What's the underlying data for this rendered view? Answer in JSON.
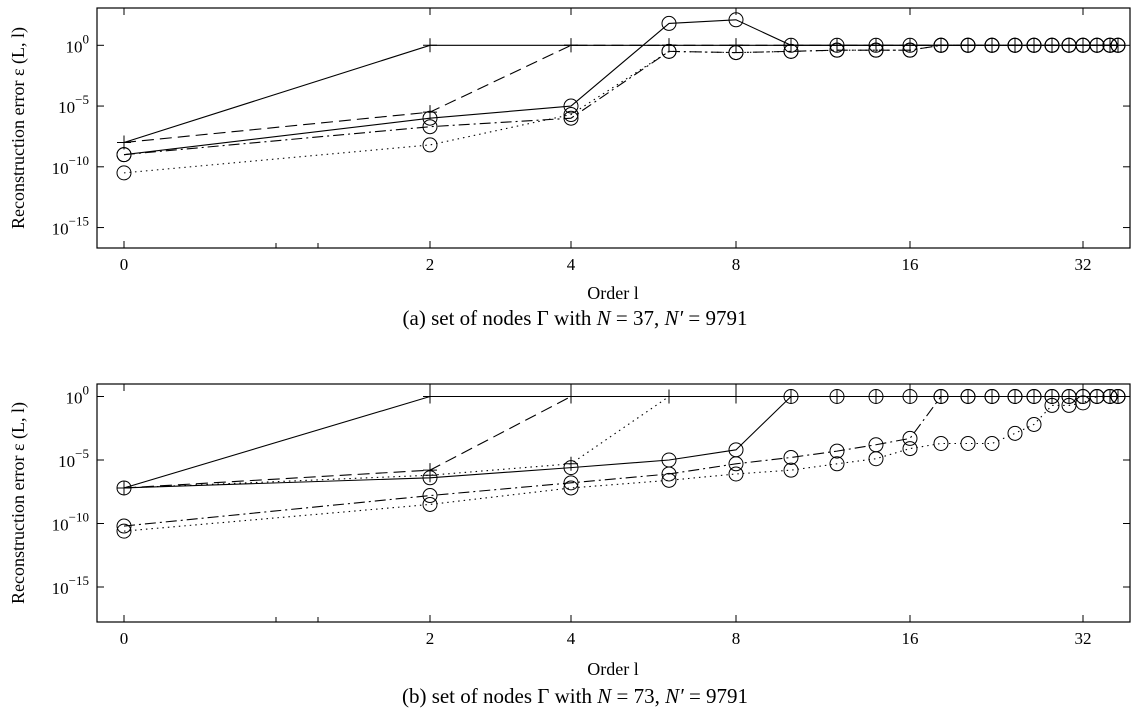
{
  "chart_data": [
    {
      "type": "line",
      "caption": "(a) set of nodes Γ with N = 37, N′ = 9791",
      "caption_parts": {
        "prefix": "(a) set of nodes Γ with ",
        "n_var": "N",
        "n_val": " = 37, ",
        "np_var": "N′",
        "np_val": " = 9791"
      },
      "xlabel": "Order l",
      "ylabel": "Reconstruction error ε (L, l)",
      "xticks": [
        "0",
        "2",
        "4",
        "8",
        "16",
        "32"
      ],
      "yticks": [
        {
          "base": "10",
          "exp": "0"
        },
        {
          "base": "10",
          "exp": "−5"
        },
        {
          "base": "10",
          "exp": "−10"
        },
        {
          "base": "10",
          "exp": "−15"
        }
      ],
      "xlim": [
        0,
        35
      ],
      "ylim_log10": [
        -17,
        3
      ],
      "series": [
        {
          "style": "solid",
          "marker": "plus",
          "x": [
            0,
            2,
            4,
            6,
            8,
            10,
            12,
            14,
            16,
            18,
            20,
            22,
            24,
            26,
            28,
            30,
            32,
            33,
            34,
            35
          ],
          "log10_y": [
            -8,
            0,
            0,
            0,
            0,
            0,
            0,
            0,
            0,
            0,
            0,
            0,
            0,
            0,
            0,
            0,
            0,
            0,
            0,
            0
          ]
        },
        {
          "style": "dashed",
          "marker": "plus",
          "x": [
            0,
            2,
            4,
            6,
            8,
            10,
            12,
            14,
            16,
            18,
            20,
            22,
            24,
            26,
            28,
            30,
            32,
            33,
            34,
            35
          ],
          "log10_y": [
            -8,
            -5.5,
            0,
            0,
            0,
            0,
            0,
            0,
            0,
            0,
            0,
            0,
            0,
            0,
            0,
            0,
            0,
            0,
            0,
            0
          ]
        },
        {
          "style": "solid",
          "marker": "circle",
          "x": [
            0,
            2,
            4,
            6,
            8,
            10,
            12,
            14,
            16,
            18,
            20,
            22,
            24,
            26,
            28,
            30,
            32,
            33,
            34,
            35
          ],
          "log10_y": [
            -9,
            -6,
            -5,
            1.8,
            2.1,
            0,
            0,
            0,
            0,
            0,
            0,
            0,
            0,
            0,
            0,
            0,
            0,
            0,
            0,
            0
          ]
        },
        {
          "style": "dashdot",
          "marker": "circle",
          "x": [
            0,
            2,
            4,
            6,
            8,
            10,
            12,
            14,
            16,
            18,
            20,
            22,
            24,
            26,
            28,
            30,
            32,
            33,
            34,
            35
          ],
          "log10_y": [
            -9,
            -6.7,
            -6,
            -0.5,
            -0.6,
            -0.5,
            -0.4,
            -0.4,
            -0.4,
            0,
            0,
            0,
            0,
            0,
            0,
            0,
            0,
            0,
            0,
            0
          ]
        },
        {
          "style": "dotted",
          "marker": "circle",
          "x": [
            0,
            2,
            4,
            6,
            8,
            10,
            12,
            14,
            16,
            18,
            20,
            22,
            24,
            26,
            28,
            30,
            32,
            33,
            34,
            35
          ],
          "log10_y": [
            -10.5,
            -8.2,
            -5.7,
            -0.5,
            -0.6,
            -0.5,
            -0.4,
            -0.4,
            -0.4,
            0,
            0,
            0,
            0,
            0,
            0,
            0,
            0,
            0,
            0,
            0
          ]
        }
      ]
    },
    {
      "type": "line",
      "caption": "(b) set of nodes Γ with N = 73, N′ = 9791",
      "caption_parts": {
        "prefix": "(b) set of nodes Γ with ",
        "n_var": "N",
        "n_val": " = 73, ",
        "np_var": "N′",
        "np_val": " = 9791"
      },
      "xlabel": "Order l",
      "ylabel": "Reconstruction error ε (L, l)",
      "xticks": [
        "0",
        "2",
        "4",
        "8",
        "16",
        "32"
      ],
      "yticks": [
        {
          "base": "10",
          "exp": "0"
        },
        {
          "base": "10",
          "exp": "−5"
        },
        {
          "base": "10",
          "exp": "−10"
        },
        {
          "base": "10",
          "exp": "−15"
        }
      ],
      "xlim": [
        0,
        35
      ],
      "ylim_log10": [
        -17.2,
        1.2
      ],
      "series": [
        {
          "style": "solid",
          "marker": "plus",
          "x": [
            0,
            2,
            4,
            6,
            8,
            10,
            12,
            14,
            16,
            18,
            20,
            22,
            24,
            26,
            28,
            30,
            32,
            33,
            34,
            35
          ],
          "log10_y": [
            -7.2,
            0,
            0,
            0,
            0,
            0,
            0,
            0,
            0,
            0,
            0,
            0,
            0,
            0,
            0,
            0,
            0,
            0,
            0,
            0
          ]
        },
        {
          "style": "dashed",
          "marker": "plus",
          "x": [
            0,
            2,
            4,
            6,
            8,
            10,
            12,
            14,
            16,
            18,
            20,
            22,
            24,
            26,
            28,
            30,
            32,
            33,
            34,
            35
          ],
          "log10_y": [
            -7.2,
            -5.8,
            0,
            0,
            0,
            0,
            0,
            0,
            0,
            0,
            0,
            0,
            0,
            0,
            0,
            0,
            0,
            0,
            0,
            0
          ]
        },
        {
          "style": "dotted",
          "marker": "plus",
          "x": [
            0,
            2,
            4,
            6,
            8,
            10,
            12,
            14,
            16,
            18,
            20,
            22,
            24,
            26,
            28,
            30,
            32,
            33,
            34,
            35
          ],
          "log10_y": [
            -7.2,
            -6.2,
            -5.3,
            0,
            0,
            0,
            0,
            0,
            0,
            0,
            0,
            0,
            0,
            0,
            0,
            0,
            0,
            0,
            0,
            0
          ]
        },
        {
          "style": "solid",
          "marker": "circle",
          "x": [
            0,
            2,
            4,
            6,
            8,
            10,
            12,
            14,
            16,
            18,
            20,
            22,
            24,
            26,
            28,
            30,
            32,
            33,
            34,
            35
          ],
          "log10_y": [
            -7.2,
            -6.4,
            -5.6,
            -5,
            -4.2,
            0,
            0,
            0,
            0,
            0,
            0,
            0,
            0,
            0,
            0,
            0,
            0,
            0,
            0,
            0
          ]
        },
        {
          "style": "dashdot",
          "marker": "circle",
          "x": [
            0,
            2,
            4,
            6,
            8,
            10,
            12,
            14,
            16,
            18,
            20,
            22,
            24,
            26,
            28,
            30,
            32,
            33,
            34,
            35
          ],
          "log10_y": [
            -10.2,
            -7.8,
            -6.8,
            -6.1,
            -5.3,
            -4.8,
            -4.3,
            -3.8,
            -3.3,
            0,
            0,
            0,
            0,
            0,
            0,
            0,
            0,
            0,
            0,
            0
          ]
        },
        {
          "style": "dotted",
          "marker": "circle",
          "x": [
            0,
            2,
            4,
            6,
            8,
            10,
            12,
            14,
            16,
            18,
            20,
            22,
            24,
            26,
            28,
            30,
            32,
            33,
            34,
            35
          ],
          "log10_y": [
            -10.6,
            -8.5,
            -7.2,
            -6.6,
            -6.1,
            -5.8,
            -5.3,
            -4.9,
            -4.1,
            -3.7,
            -3.7,
            -3.7,
            -2.9,
            -2.2,
            -0.7,
            -0.7,
            -0.5,
            0,
            0,
            0
          ]
        }
      ]
    }
  ]
}
